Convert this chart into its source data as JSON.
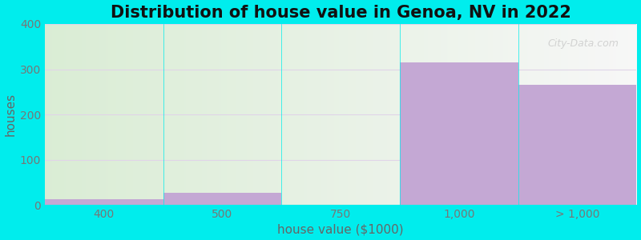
{
  "title": "Distribution of house value in Genoa, NV in 2022",
  "xlabel": "house value ($1000)",
  "ylabel": "houses",
  "categories": [
    "400",
    "500",
    "750",
    "1,000",
    "> 1,000"
  ],
  "values": [
    13,
    28,
    0,
    315,
    265
  ],
  "bar_color": "#c4a8d4",
  "background_color": "#00eded",
  "ylim": [
    0,
    400
  ],
  "yticks": [
    0,
    100,
    200,
    300,
    400
  ],
  "grid_color": "#e0d4e8",
  "title_fontsize": 15,
  "axis_label_fontsize": 11,
  "tick_fontsize": 10,
  "tick_color": "#777777",
  "bin_edges": [
    0,
    1,
    2,
    3,
    4,
    5
  ],
  "watermark": "City-Data.com"
}
